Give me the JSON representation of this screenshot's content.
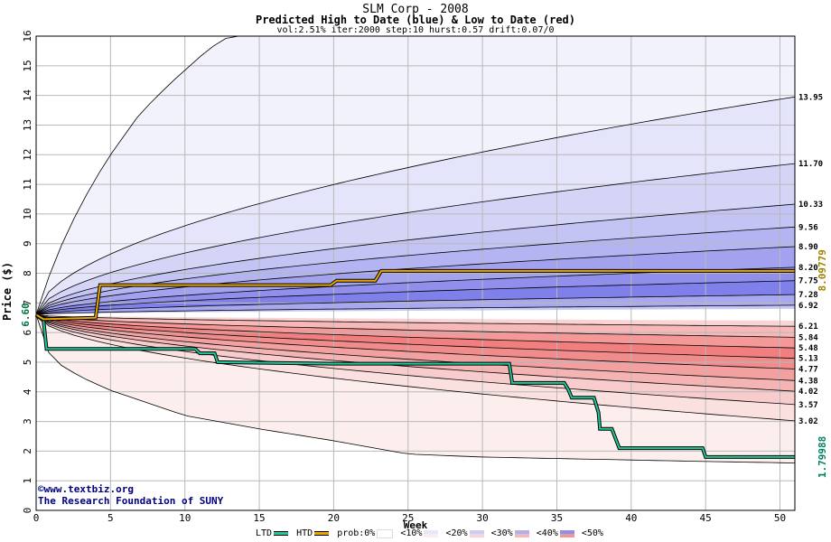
{
  "title": "SLM Corp - 2008",
  "subtitle": "Predicted High to Date (blue) &  Low to Date (red)",
  "params": "vol:2.51% iter:2000 step:10 hurst:0.57 drift:0.07/0",
  "credit_lines": [
    "©www.textbiz.org",
    "The Research Foundation of SUNY"
  ],
  "legend": {
    "ltd": "LTD",
    "htd": "HTD",
    "prob": "prob:0%",
    "bands": [
      "<10%",
      "<20%",
      "<30%",
      "<40%",
      "<50%"
    ],
    "ltd_color": "#20c898",
    "htd_color": "#e8a800"
  },
  "chart_data": {
    "type": "area",
    "xlabel": "Week",
    "ylabel": "Price ($)",
    "xlim": [
      0,
      51
    ],
    "ylim": [
      0,
      16
    ],
    "x_ticks": [
      0,
      5,
      10,
      15,
      20,
      25,
      30,
      35,
      40,
      45,
      50
    ],
    "y_ticks": [
      0,
      1,
      2,
      3,
      4,
      5,
      6,
      7,
      8,
      9,
      10,
      11,
      12,
      13,
      14,
      15,
      16
    ],
    "start_price": 6.6,
    "start_label": "6.60",
    "high_endpoints": [
      {
        "label": "13.95",
        "value": 13.95
      },
      {
        "label": "11.70",
        "value": 11.7
      },
      {
        "label": "10.33",
        "value": 10.33
      },
      {
        "label": "9.56",
        "value": 9.56
      },
      {
        "label": "8.90",
        "value": 8.9
      },
      {
        "label": "8.20",
        "value": 8.2
      },
      {
        "label": "7.75",
        "value": 7.75
      },
      {
        "label": "7.28",
        "value": 7.28
      },
      {
        "label": "6.92",
        "value": 6.92
      }
    ],
    "low_endpoints": [
      {
        "label": "6.21",
        "value": 6.21
      },
      {
        "label": "5.84",
        "value": 5.84
      },
      {
        "label": "5.48",
        "value": 5.48
      },
      {
        "label": "5.13",
        "value": 5.13
      },
      {
        "label": "4.77",
        "value": 4.77
      },
      {
        "label": "4.38",
        "value": 4.38
      },
      {
        "label": "4.02",
        "value": 4.02
      },
      {
        "label": "3.57",
        "value": 3.57
      },
      {
        "label": "3.02",
        "value": 3.02
      }
    ],
    "outer_high_curve": [
      [
        0,
        6.6
      ],
      [
        1,
        8.1
      ],
      [
        2,
        9.3
      ],
      [
        3,
        10.3
      ],
      [
        4,
        11.2
      ],
      [
        5,
        12.0
      ],
      [
        6,
        12.7
      ],
      [
        7,
        13.4
      ],
      [
        8,
        13.9
      ],
      [
        9,
        14.4
      ],
      [
        10,
        14.85
      ],
      [
        11,
        15.3
      ],
      [
        12,
        15.7
      ],
      [
        13,
        16.0
      ]
    ],
    "outer_low_curve": [
      [
        0,
        6.6
      ],
      [
        1,
        5.1
      ],
      [
        3,
        4.5
      ],
      [
        5,
        4.05
      ],
      [
        10,
        3.2
      ],
      [
        15,
        2.75
      ],
      [
        20,
        2.35
      ],
      [
        25,
        1.9
      ],
      [
        30,
        1.8
      ],
      [
        35,
        1.75
      ],
      [
        40,
        1.7
      ],
      [
        45,
        1.65
      ],
      [
        51,
        1.6
      ]
    ],
    "htd_series": {
      "name": "HTD",
      "end_label": "8.09779",
      "end_value": 8.09779,
      "points": [
        [
          0,
          6.6
        ],
        [
          0.5,
          6.45
        ],
        [
          4,
          6.5
        ],
        [
          4.3,
          7.6
        ],
        [
          19.8,
          7.6
        ],
        [
          20.2,
          7.75
        ],
        [
          22.8,
          7.75
        ],
        [
          23.2,
          8.08
        ],
        [
          51,
          8.08
        ]
      ]
    },
    "ltd_series": {
      "name": "LTD",
      "end_label": "1.79988",
      "end_value": 1.79988,
      "points": [
        [
          0,
          6.6
        ],
        [
          0.5,
          6.4
        ],
        [
          0.7,
          5.45
        ],
        [
          10.7,
          5.45
        ],
        [
          11,
          5.3
        ],
        [
          12,
          5.3
        ],
        [
          12.2,
          5.0
        ],
        [
          20,
          4.95
        ],
        [
          31.8,
          4.95
        ],
        [
          32,
          4.3
        ],
        [
          35.5,
          4.3
        ],
        [
          35.8,
          4.05
        ],
        [
          36,
          3.8
        ],
        [
          37.5,
          3.8
        ],
        [
          37.8,
          3.3
        ],
        [
          37.9,
          2.75
        ],
        [
          38.7,
          2.75
        ],
        [
          39.2,
          2.1
        ],
        [
          44.8,
          2.1
        ],
        [
          45,
          1.8
        ],
        [
          51,
          1.8
        ]
      ]
    },
    "grid": true,
    "legend_position": "bottom"
  }
}
